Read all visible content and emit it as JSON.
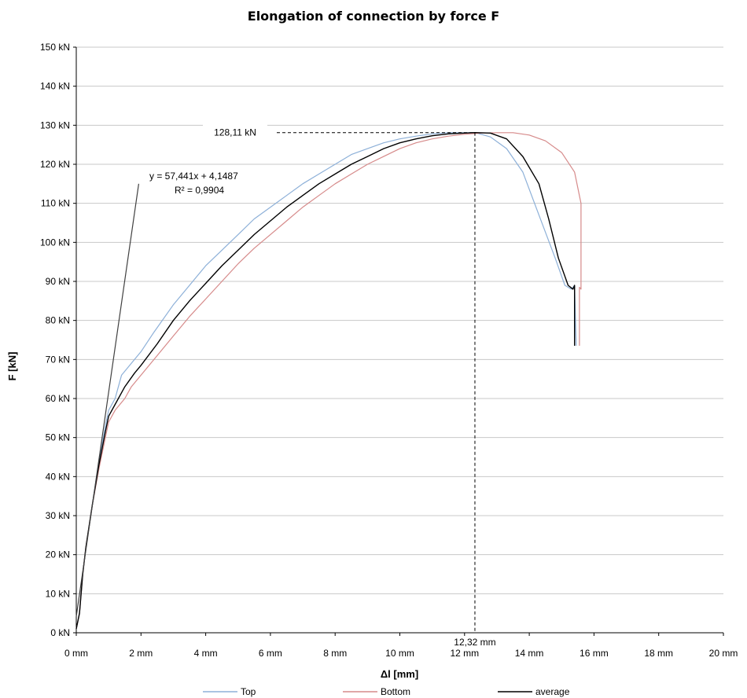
{
  "chart_data": {
    "type": "line",
    "title": "Elongation of connection by force F",
    "xlabel": "Δl [mm]",
    "ylabel": "F [kN]",
    "xlim": [
      0,
      20
    ],
    "ylim": [
      0,
      150
    ],
    "x_ticks": [
      "0 mm",
      "2 mm",
      "4 mm",
      "6 mm",
      "8 mm",
      "10 mm",
      "12 mm",
      "14 mm",
      "16 mm",
      "18 mm",
      "20 mm"
    ],
    "y_ticks": [
      "0 kN",
      "10 kN",
      "20 kN",
      "30 kN",
      "40 kN",
      "50 kN",
      "60 kN",
      "70 kN",
      "80 kN",
      "90 kN",
      "100 kN",
      "110 kN",
      "120 kN",
      "130 kN",
      "140 kN",
      "150 kN"
    ],
    "grid": "horizontal",
    "legend_position": "bottom",
    "colors": {
      "Top": "#8db0d8",
      "Bottom": "#d68a8a",
      "average": "#000000",
      "trendline": "#404040"
    },
    "series": [
      {
        "name": "Top",
        "points": [
          [
            0,
            1
          ],
          [
            0.1,
            5
          ],
          [
            0.2,
            15
          ],
          [
            0.3,
            22
          ],
          [
            0.5,
            33
          ],
          [
            0.7,
            44
          ],
          [
            0.9,
            53
          ],
          [
            1.0,
            57
          ],
          [
            1.2,
            60
          ],
          [
            1.4,
            66
          ],
          [
            1.7,
            69
          ],
          [
            2.0,
            72
          ],
          [
            2.4,
            77
          ],
          [
            3.0,
            84
          ],
          [
            3.5,
            89
          ],
          [
            4.0,
            94
          ],
          [
            4.5,
            98
          ],
          [
            5.0,
            102
          ],
          [
            5.5,
            106
          ],
          [
            6.0,
            109
          ],
          [
            6.5,
            112
          ],
          [
            7.0,
            115
          ],
          [
            7.5,
            117.5
          ],
          [
            8.0,
            120
          ],
          [
            8.5,
            122.5
          ],
          [
            9.0,
            124
          ],
          [
            9.5,
            125.5
          ],
          [
            10.0,
            126.5
          ],
          [
            10.5,
            127.2
          ],
          [
            11.0,
            127.8
          ],
          [
            11.5,
            128.1
          ],
          [
            12.0,
            128.1
          ],
          [
            12.32,
            128.11
          ],
          [
            12.8,
            127
          ],
          [
            13.3,
            124
          ],
          [
            13.8,
            118
          ],
          [
            14.3,
            107
          ],
          [
            14.8,
            96
          ],
          [
            15.1,
            89
          ],
          [
            15.3,
            88
          ],
          [
            15.4,
            89
          ],
          [
            15.45,
            73.5
          ]
        ]
      },
      {
        "name": "Bottom",
        "points": [
          [
            0,
            1
          ],
          [
            0.1,
            5
          ],
          [
            0.2,
            15
          ],
          [
            0.3,
            22
          ],
          [
            0.5,
            33
          ],
          [
            0.7,
            42
          ],
          [
            0.9,
            50
          ],
          [
            1.0,
            54
          ],
          [
            1.2,
            57
          ],
          [
            1.5,
            60
          ],
          [
            1.7,
            63
          ],
          [
            2.0,
            66
          ],
          [
            2.5,
            71
          ],
          [
            3.0,
            76
          ],
          [
            3.5,
            81
          ],
          [
            4.0,
            85.5
          ],
          [
            4.5,
            90
          ],
          [
            5.0,
            94.5
          ],
          [
            5.5,
            98.5
          ],
          [
            6.0,
            102
          ],
          [
            6.5,
            105.5
          ],
          [
            7.0,
            109
          ],
          [
            7.5,
            112
          ],
          [
            8.0,
            115
          ],
          [
            8.5,
            117.5
          ],
          [
            9.0,
            120
          ],
          [
            9.5,
            122
          ],
          [
            10.0,
            124
          ],
          [
            10.5,
            125.5
          ],
          [
            11.0,
            126.5
          ],
          [
            11.5,
            127.2
          ],
          [
            12.0,
            127.7
          ],
          [
            12.5,
            128
          ],
          [
            13.0,
            128.1
          ],
          [
            13.5,
            128.1
          ],
          [
            14.0,
            127.5
          ],
          [
            14.5,
            126
          ],
          [
            15.0,
            123
          ],
          [
            15.4,
            118
          ],
          [
            15.6,
            110
          ],
          [
            15.6,
            95
          ],
          [
            15.6,
            88
          ],
          [
            15.55,
            88.5
          ],
          [
            15.55,
            73.5
          ]
        ]
      },
      {
        "name": "average",
        "points": [
          [
            0,
            1
          ],
          [
            0.1,
            5
          ],
          [
            0.2,
            15
          ],
          [
            0.3,
            22
          ],
          [
            0.5,
            33
          ],
          [
            0.7,
            43
          ],
          [
            0.9,
            51.5
          ],
          [
            1.0,
            55.5
          ],
          [
            1.2,
            58.5
          ],
          [
            1.5,
            63
          ],
          [
            1.8,
            66.5
          ],
          [
            2.0,
            68.5
          ],
          [
            2.5,
            74
          ],
          [
            3.0,
            80
          ],
          [
            3.5,
            85
          ],
          [
            4.0,
            89.5
          ],
          [
            4.5,
            94
          ],
          [
            5.0,
            98
          ],
          [
            5.5,
            102
          ],
          [
            6.0,
            105.5
          ],
          [
            6.5,
            109
          ],
          [
            7.0,
            112
          ],
          [
            7.5,
            115
          ],
          [
            8.0,
            117.5
          ],
          [
            8.5,
            120
          ],
          [
            9.0,
            122
          ],
          [
            9.5,
            124
          ],
          [
            10.0,
            125.5
          ],
          [
            10.5,
            126.5
          ],
          [
            11.0,
            127.3
          ],
          [
            11.5,
            127.8
          ],
          [
            12.0,
            128
          ],
          [
            12.32,
            128.11
          ],
          [
            12.8,
            128
          ],
          [
            13.3,
            126.5
          ],
          [
            13.8,
            122
          ],
          [
            14.3,
            115
          ],
          [
            14.6,
            106
          ],
          [
            14.9,
            96
          ],
          [
            15.2,
            89
          ],
          [
            15.35,
            88
          ],
          [
            15.4,
            89
          ],
          [
            15.4,
            73.5
          ]
        ]
      }
    ],
    "trendline": {
      "equation": "y = 57,441x + 4,1487",
      "r2": "R² = 0,9904",
      "x_range": [
        0,
        1.93
      ]
    },
    "peak": {
      "x": 12.32,
      "y": 128.11,
      "x_label": "12,32 mm",
      "y_label": "128,11 kN"
    }
  }
}
